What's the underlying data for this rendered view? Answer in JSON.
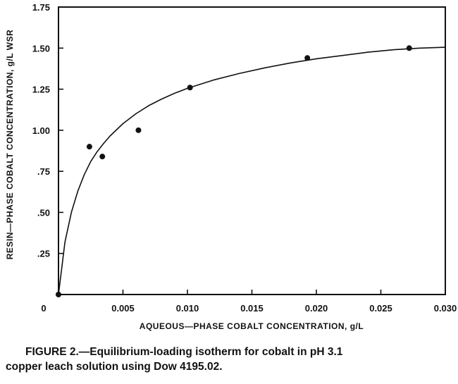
{
  "caption": {
    "line1": "FIGURE  2.—Equilibrium-loading isotherm for cobalt in pH 3.1",
    "line2": "copper leach solution using Dow 4195.02."
  },
  "chart_data": {
    "type": "scatter",
    "title": "",
    "xlabel": "AQUEOUS—PHASE  COBALT  CONCENTRATION,  g/L",
    "ylabel": "RESIN—PHASE  COBALT  CONCENTRATION,  g/L  WSR",
    "xlim": [
      0,
      0.03
    ],
    "ylim": [
      0,
      1.75
    ],
    "x_ticks": [
      "0",
      "0.005",
      "0.010",
      "0.015",
      "0.020",
      "0.025",
      "0.030"
    ],
    "x_tick_values": [
      0,
      0.005,
      0.01,
      0.015,
      0.02,
      0.025,
      0.03
    ],
    "y_ticks": [
      "1.75",
      "1.50",
      "1.25",
      "1.00",
      ".75",
      ".50",
      ".25"
    ],
    "y_tick_values": [
      1.75,
      1.5,
      1.25,
      1.0,
      0.75,
      0.5,
      0.25
    ],
    "grid": false,
    "points": [
      {
        "x": 0.0,
        "y": 0.0
      },
      {
        "x": 0.0024,
        "y": 0.9
      },
      {
        "x": 0.0034,
        "y": 0.84
      },
      {
        "x": 0.0062,
        "y": 1.0
      },
      {
        "x": 0.0102,
        "y": 1.26
      },
      {
        "x": 0.0193,
        "y": 1.44
      },
      {
        "x": 0.0272,
        "y": 1.5
      }
    ],
    "fit_curve": {
      "x": [
        0,
        0.0005,
        0.001,
        0.0015,
        0.002,
        0.0025,
        0.003,
        0.0035,
        0.004,
        0.005,
        0.006,
        0.007,
        0.008,
        0.009,
        0.01,
        0.012,
        0.014,
        0.016,
        0.018,
        0.02,
        0.022,
        0.024,
        0.026,
        0.028,
        0.03
      ],
      "y": [
        0,
        0.32,
        0.5,
        0.63,
        0.73,
        0.81,
        0.87,
        0.92,
        0.965,
        1.04,
        1.1,
        1.15,
        1.19,
        1.225,
        1.255,
        1.305,
        1.345,
        1.38,
        1.41,
        1.435,
        1.455,
        1.475,
        1.49,
        1.5,
        1.505
      ]
    }
  }
}
